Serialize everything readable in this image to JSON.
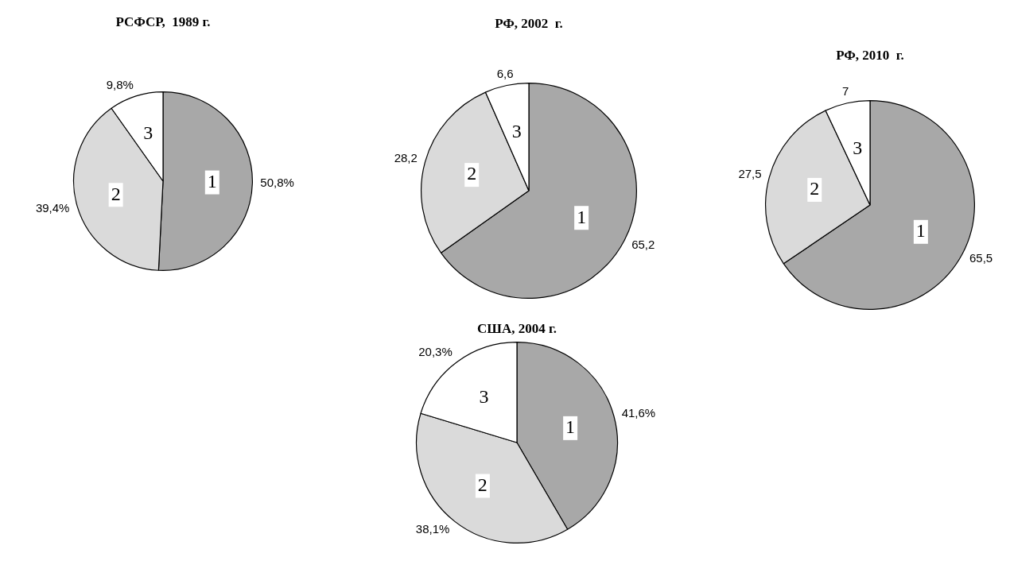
{
  "chart_data": [
    {
      "type": "pie",
      "title": "РСФСР,  1989 г.",
      "categories": [
        "1",
        "2",
        "3"
      ],
      "values": [
        50.8,
        39.4,
        9.8
      ],
      "colors": [
        "#a8a8a8",
        "#dadada",
        "#ffffff"
      ],
      "value_labels": [
        "50,8%",
        "39,4%",
        "9,8%"
      ]
    },
    {
      "type": "pie",
      "title": "РФ, 2002  г.",
      "categories": [
        "1",
        "2",
        "3"
      ],
      "values": [
        65.2,
        28.2,
        6.6
      ],
      "colors": [
        "#a8a8a8",
        "#dadada",
        "#ffffff"
      ],
      "value_labels": [
        "65,2",
        "28,2",
        "6,6"
      ]
    },
    {
      "type": "pie",
      "title": "РФ, 2010  г.",
      "categories": [
        "1",
        "2",
        "3"
      ],
      "values": [
        65.5,
        27.5,
        7
      ],
      "colors": [
        "#a8a8a8",
        "#dadada",
        "#ffffff"
      ],
      "value_labels": [
        "65,5",
        "27,5",
        "7"
      ]
    },
    {
      "type": "pie",
      "title": "США, 2004 г.",
      "categories": [
        "1",
        "2",
        "3"
      ],
      "values": [
        41.6,
        38.1,
        20.3
      ],
      "colors": [
        "#a8a8a8",
        "#dadada",
        "#ffffff"
      ],
      "value_labels": [
        "41,6%",
        "38,1%",
        "20,3%"
      ]
    }
  ]
}
